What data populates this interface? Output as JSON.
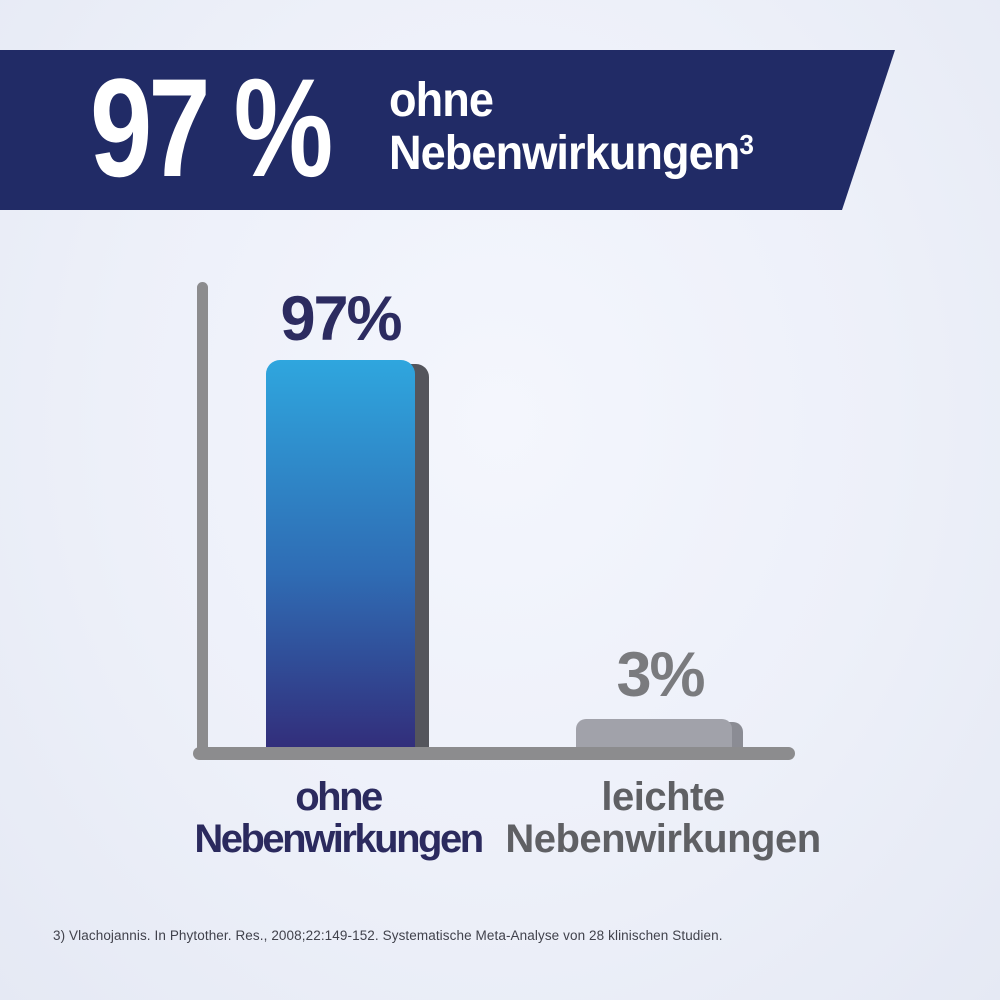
{
  "header": {
    "percent": "97 %",
    "line1": "ohne",
    "line2": "Nebenwirkungen",
    "footnote_marker": "3"
  },
  "chart_data": {
    "type": "bar",
    "title": "97 % ohne Nebenwirkungen (3)",
    "categories": [
      "ohne Nebenwirkungen",
      "leichte Nebenwirkungen"
    ],
    "values": [
      97,
      3
    ],
    "value_labels": [
      "97%",
      "3%"
    ],
    "ylim": [
      0,
      100
    ],
    "grid": false,
    "legend_position": "none",
    "xlabel": "",
    "ylabel": ""
  },
  "bars": [
    {
      "value_label": "97%",
      "label_line1": "ohne",
      "label_line2": "Nebenwirkungen",
      "color_top": "#2FA6DE",
      "color_mid": "#2F6CB4",
      "color_bottom": "#322E7B",
      "shadow_color": "#54555C"
    },
    {
      "value_label": "3%",
      "label_line1": "leichte",
      "label_line2": "Nebenwirkungen",
      "color": "#A1A2AA",
      "shadow_color": "#8B8C94"
    }
  ],
  "footnote": "3) Vlachojannis. In Phytother. Res., 2008;22:149-152. Systematische Meta-Analyse von 28 klinischen Studien.",
  "colors": {
    "banner_background": "#212B66",
    "banner_text": "#FFFFFF",
    "navy_text": "#2B2A5E",
    "gray_value_text": "#7A7B7E",
    "gray_label_text": "#5F6064",
    "axis_gray": "#8C8C8E",
    "page_background": "#EDF0F9"
  }
}
